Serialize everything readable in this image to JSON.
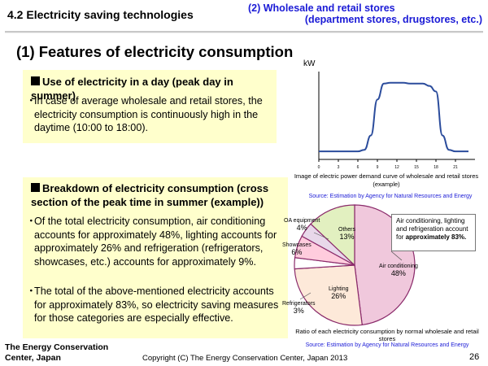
{
  "header": {
    "title": "4.2 Electricity saving technologies",
    "subtitle_line1": "(2) Wholesale and retail stores",
    "subtitle_line2": "(department stores, drugstores, etc.)"
  },
  "section_title": "(1) Features of electricity consumption",
  "panel1": {
    "heading": "Use of electricity in a day (peak day in summer)",
    "bullet": "In case of average wholesale and retail stores, the electricity consumption is continuously high in the daytime (10:00 to 18:00)."
  },
  "panel2": {
    "heading": "Breakdown of electricity consumption (cross section of the peak time in summer (example))",
    "bullet1": "Of the total electricity consumption, air conditioning accounts for approximately 48%, lighting accounts for approximately 26% and refrigeration (refrigerators, showcases, etc.) accounts for approximately 9%.",
    "bullet2": "The total of the above-mentioned electricity accounts for approximately 83%, so electricity saving measures for those categories are especially effective."
  },
  "bullet_mark": "・",
  "colors": {
    "accent_blue": "#1a1ad6",
    "panel_yellow": "#ffffcc"
  },
  "chart_data": [
    {
      "type": "line",
      "ylabel": "kW",
      "x": [
        0,
        1,
        2,
        3,
        4,
        5,
        6,
        7,
        8,
        9,
        10,
        11,
        12,
        13,
        14,
        15,
        16,
        17,
        18,
        19,
        20,
        21,
        22,
        23
      ],
      "x_ticks": [
        "0",
        "3",
        "6",
        "9",
        "12",
        "15",
        "18",
        "21"
      ],
      "values": [
        10,
        10,
        10,
        10,
        10,
        10,
        10,
        12,
        30,
        75,
        95,
        96,
        96,
        96,
        95,
        95,
        95,
        92,
        85,
        30,
        12,
        10,
        10,
        10
      ],
      "ylim": [
        0,
        110
      ],
      "xlim": [
        0,
        24
      ],
      "caption": "Image of electric power demand curve of wholesale and retail stores (example)",
      "source": "Source: Estimation by Agency for Natural Resources and Energy"
    },
    {
      "type": "pie",
      "labels": [
        "Air conditioning",
        "Lighting",
        "Refrigerators",
        "Showcases",
        "OA equipment",
        "Others"
      ],
      "value_labels": [
        "48%",
        "26%",
        "3%",
        "6%",
        "4%",
        "13%"
      ],
      "values": [
        48,
        26,
        3,
        6,
        4,
        13
      ],
      "slice_colors": [
        "#f0c8dc",
        "#fde9d9",
        "#ffffff",
        "#ffccdd",
        "#e8d8ea",
        "#e2f0c0"
      ],
      "callout_text": "Air conditioning, lighting and refrigeration account for ",
      "callout_bold": "approximately 83%.",
      "caption": "Ratio of each electricity consumption by normal wholesale and retail stores",
      "source": "Source: Estimation by Agency for Natural Resources and Energy"
    }
  ],
  "footer": {
    "org_line1": "The Energy Conservation",
    "org_line2": "Center, Japan",
    "copyright": "Copyright (C) The Energy Conservation Center, Japan 2013",
    "page_number": "26"
  }
}
